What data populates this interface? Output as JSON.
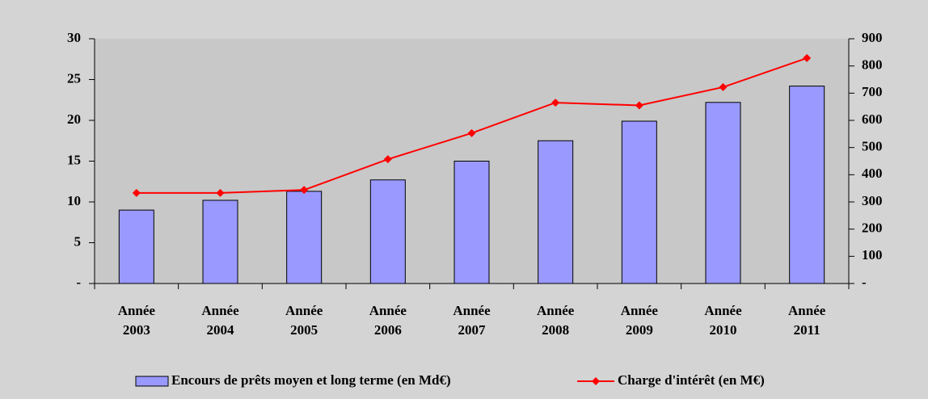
{
  "chart_data": {
    "type": "bar",
    "categories": [
      "Année 2003",
      "Année 2004",
      "Année 2005",
      "Année 2006",
      "Année 2007",
      "Année 2008",
      "Année 2009",
      "Année 2010",
      "Année 2011"
    ],
    "series": [
      {
        "name": "Encours de prêts moyen et long terme (en Md€)",
        "type": "bar",
        "color": "#9999ff",
        "values": [
          9.0,
          10.2,
          11.3,
          12.7,
          15.0,
          17.5,
          19.9,
          22.2,
          24.2
        ]
      },
      {
        "name": "Charge d'intérêt (en M€)",
        "type": "line",
        "axis": "y2",
        "color": "#ff0000",
        "values": [
          333,
          333,
          344,
          457,
          553,
          665,
          655,
          722,
          829
        ]
      }
    ],
    "ylim": [
      0,
      30
    ],
    "yticks": [
      {
        "value": 0,
        "label": "-"
      },
      5,
      10,
      15,
      20,
      25,
      30
    ],
    "y2lim": [
      0,
      900
    ],
    "y2ticks": [
      {
        "value": 0,
        "label": "-"
      },
      100,
      200,
      300,
      400,
      500,
      600,
      700,
      800,
      900
    ],
    "legend": "bottom"
  }
}
